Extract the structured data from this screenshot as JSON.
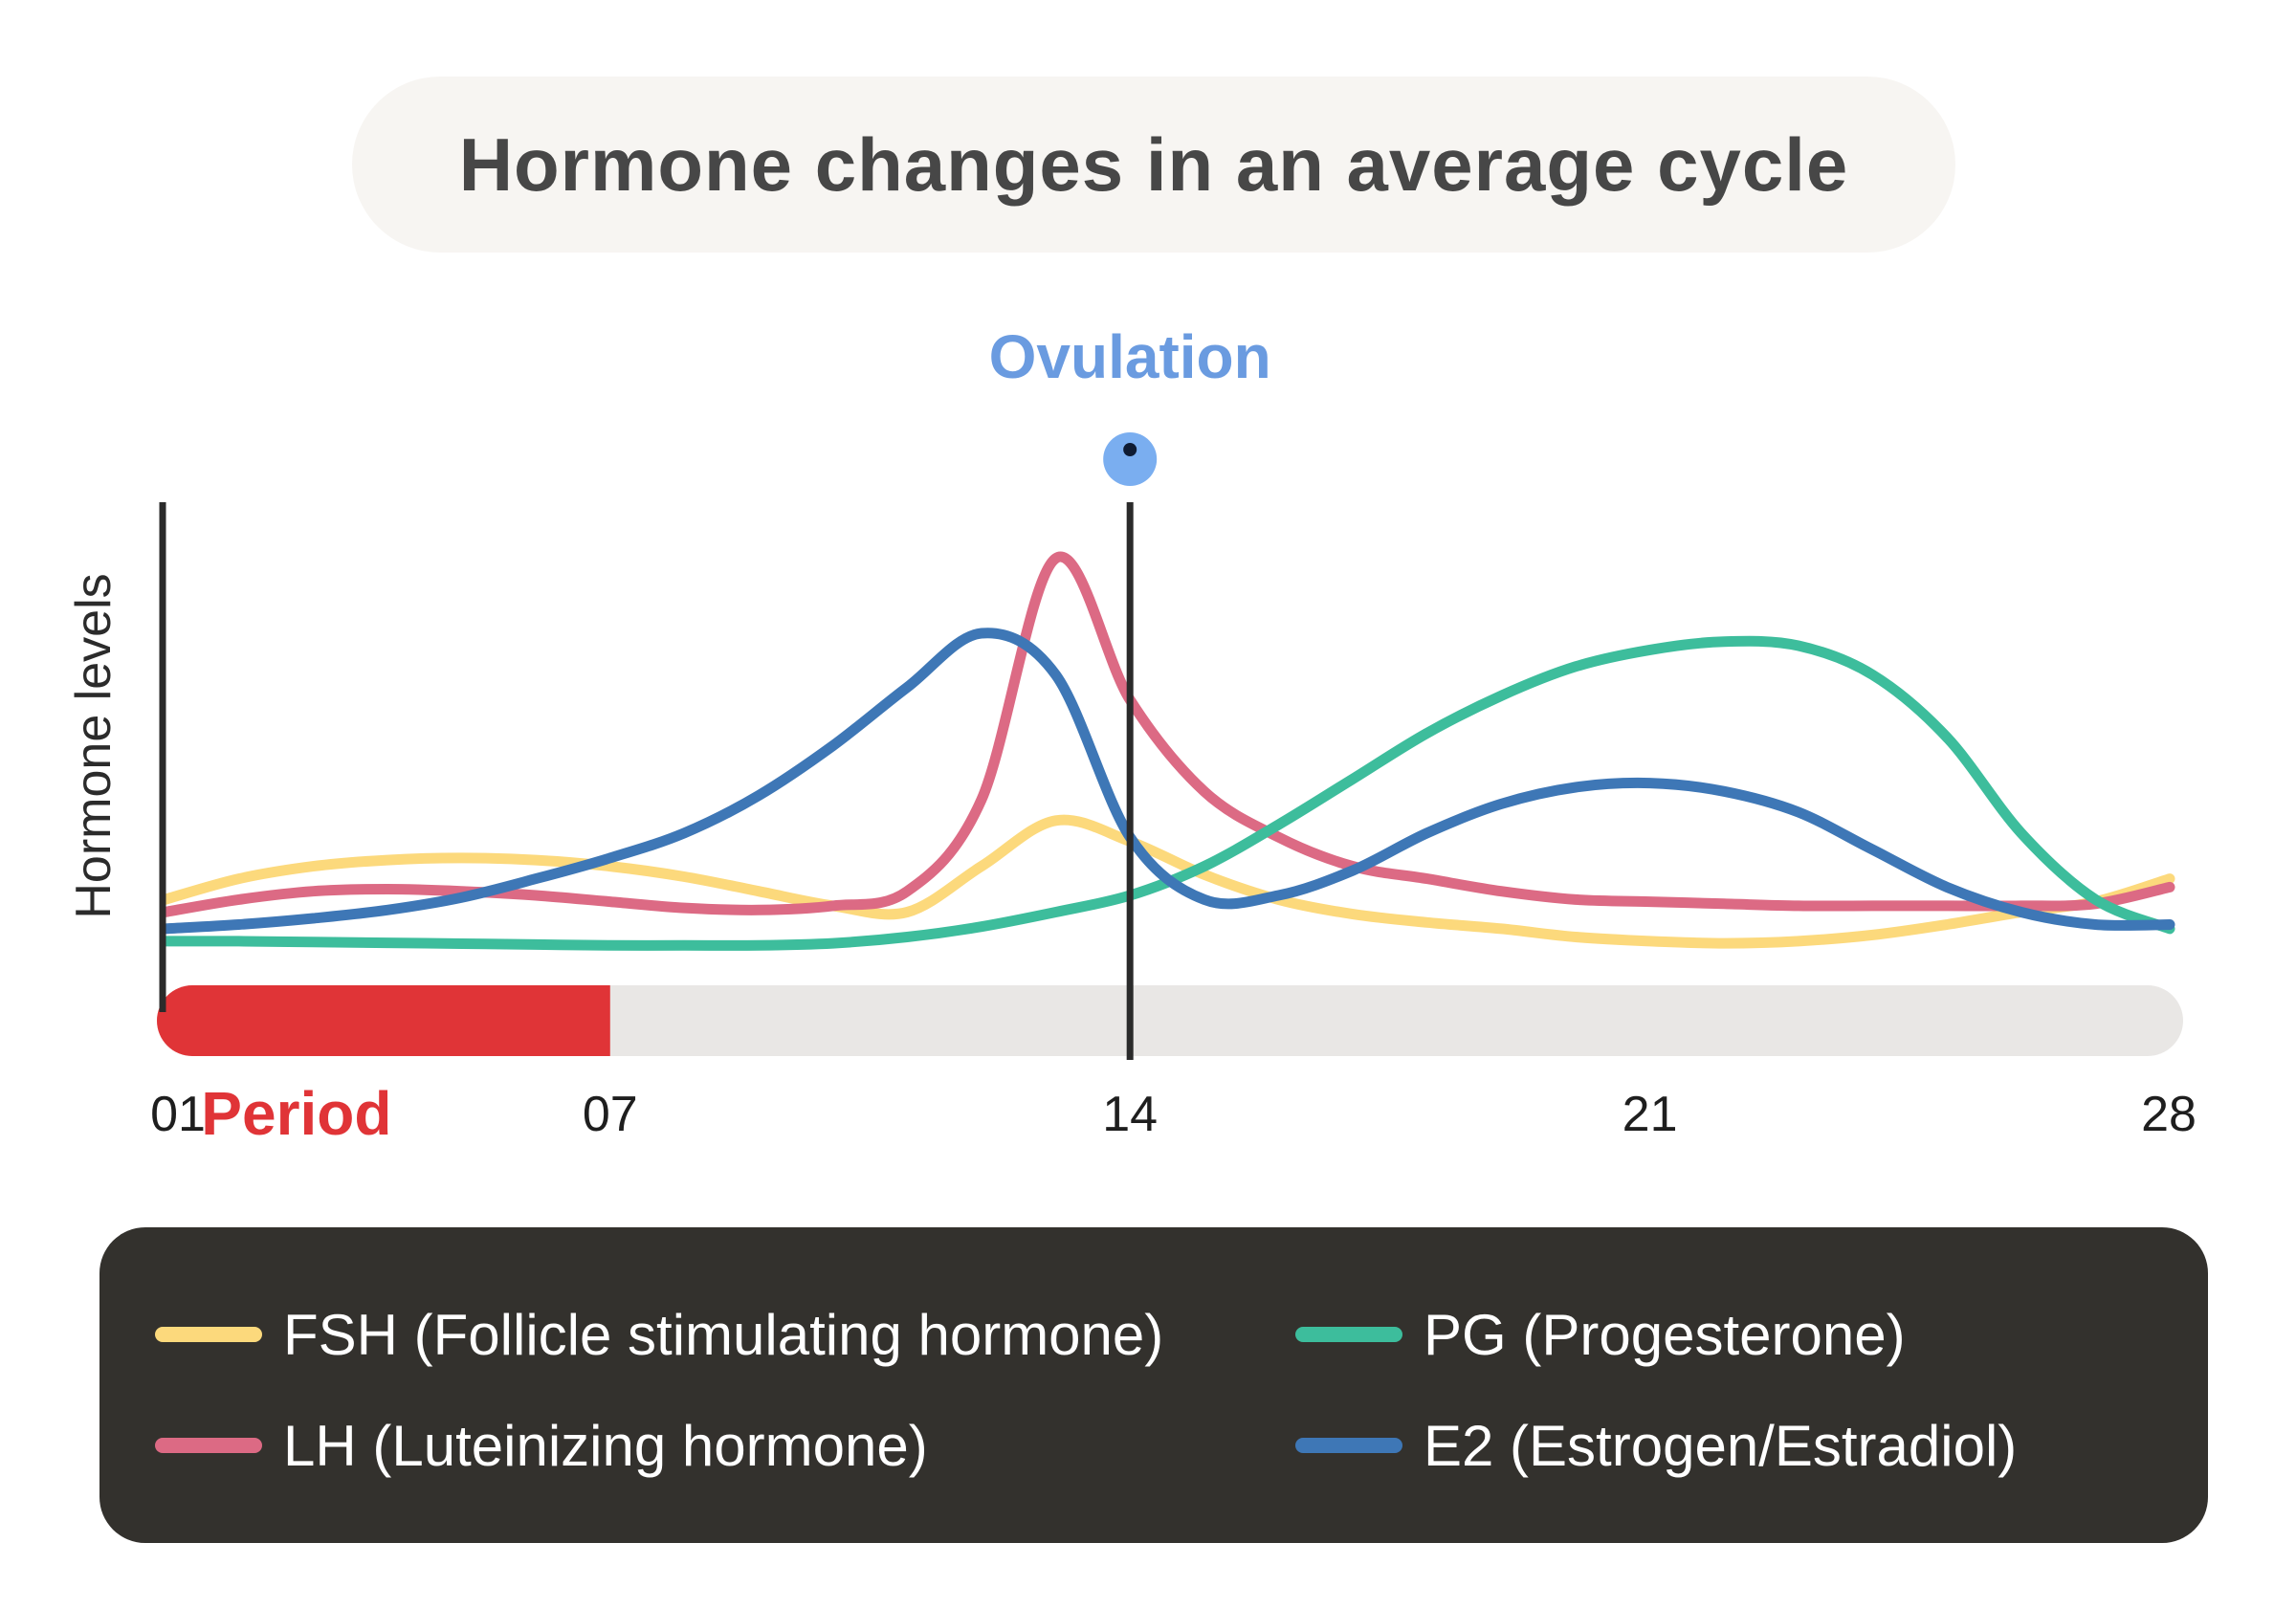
{
  "title": "Hormone changes in an average cycle",
  "chart_data": {
    "type": "line",
    "title": "Hormone changes in an average cycle",
    "xlabel": "",
    "ylabel": "Hormone levels",
    "xlim": [
      1,
      28
    ],
    "ylim": [
      0,
      100
    ],
    "x_ticks": [
      {
        "day": 1,
        "label": "01"
      },
      {
        "day": 7,
        "label": "07"
      },
      {
        "day": 14,
        "label": "14"
      },
      {
        "day": 21,
        "label": "21"
      },
      {
        "day": 28,
        "label": "28"
      }
    ],
    "annotations": {
      "ovulation": {
        "label": "Ovulation",
        "day": 14,
        "color": "#6a9be0",
        "marker_color": "#7aaef0"
      },
      "period": {
        "label": "Period",
        "start_day": 1,
        "end_day": 7,
        "color": "#e03437",
        "track_color": "#e9e7e5"
      }
    },
    "series": [
      {
        "name": "FSH (Follicle stimulating hormone)",
        "color": "#fcd97c",
        "x": [
          1,
          2,
          3,
          4,
          5,
          6,
          7,
          8,
          9,
          10,
          11,
          12,
          13,
          14,
          15,
          16,
          17,
          18,
          19,
          20,
          21,
          22,
          23,
          24,
          25,
          26,
          27,
          28
        ],
        "y": [
          16,
          21,
          24,
          25.5,
          26,
          25.5,
          24,
          21.5,
          18,
          14.5,
          13,
          24,
          35,
          30,
          22,
          16,
          12.5,
          10.5,
          9,
          7,
          6,
          5.5,
          6,
          7.5,
          10,
          13,
          15.5,
          21
        ]
      },
      {
        "name": "LH (Luteinizing hormone)",
        "color": "#dc6a84",
        "x": [
          1,
          2,
          3,
          4,
          5,
          6,
          7,
          8,
          9,
          10,
          11,
          12,
          13,
          14,
          15,
          16,
          17,
          18,
          19,
          20,
          21,
          22,
          23,
          24,
          25,
          26,
          27,
          28
        ],
        "y": [
          13,
          16,
          18,
          18.5,
          18,
          17,
          15.5,
          14,
          13.5,
          14.5,
          18,
          40,
          98,
          64,
          42,
          31,
          24,
          21,
          18,
          16,
          15.5,
          15,
          14.5,
          14.5,
          14.5,
          14.5,
          15,
          19
        ]
      },
      {
        "name": "PG (Progesterone)",
        "color": "#3dbd9c",
        "x": [
          1,
          2,
          3,
          4,
          5,
          6,
          7,
          8,
          9,
          10,
          11,
          12,
          13,
          14,
          15,
          16,
          17,
          18,
          19,
          20,
          21,
          22,
          23,
          24,
          25,
          26,
          27,
          28
        ],
        "y": [
          6,
          6,
          5.8,
          5.6,
          5.4,
          5.2,
          5,
          5,
          5,
          5.5,
          7,
          9.5,
          13,
          17,
          24,
          34,
          45,
          56,
          65,
          72,
          76,
          78,
          77,
          70,
          55,
          32,
          16,
          9
        ]
      },
      {
        "name": "E2 (Estrogen/Estradiol)",
        "color": "#3e77b6",
        "x": [
          1,
          2,
          3,
          4,
          5,
          6,
          7,
          8,
          9,
          10,
          11,
          12,
          13,
          14,
          15,
          16,
          17,
          18,
          19,
          20,
          21,
          22,
          23,
          24,
          25,
          26,
          27,
          28
        ],
        "y": [
          9,
          10,
          11.5,
          13.5,
          16.5,
          21,
          26,
          32,
          41,
          53,
          67,
          80,
          70,
          31,
          16,
          17,
          23,
          32,
          39,
          43,
          44,
          42,
          37,
          28,
          19,
          13,
          10,
          10
        ]
      }
    ]
  }
}
